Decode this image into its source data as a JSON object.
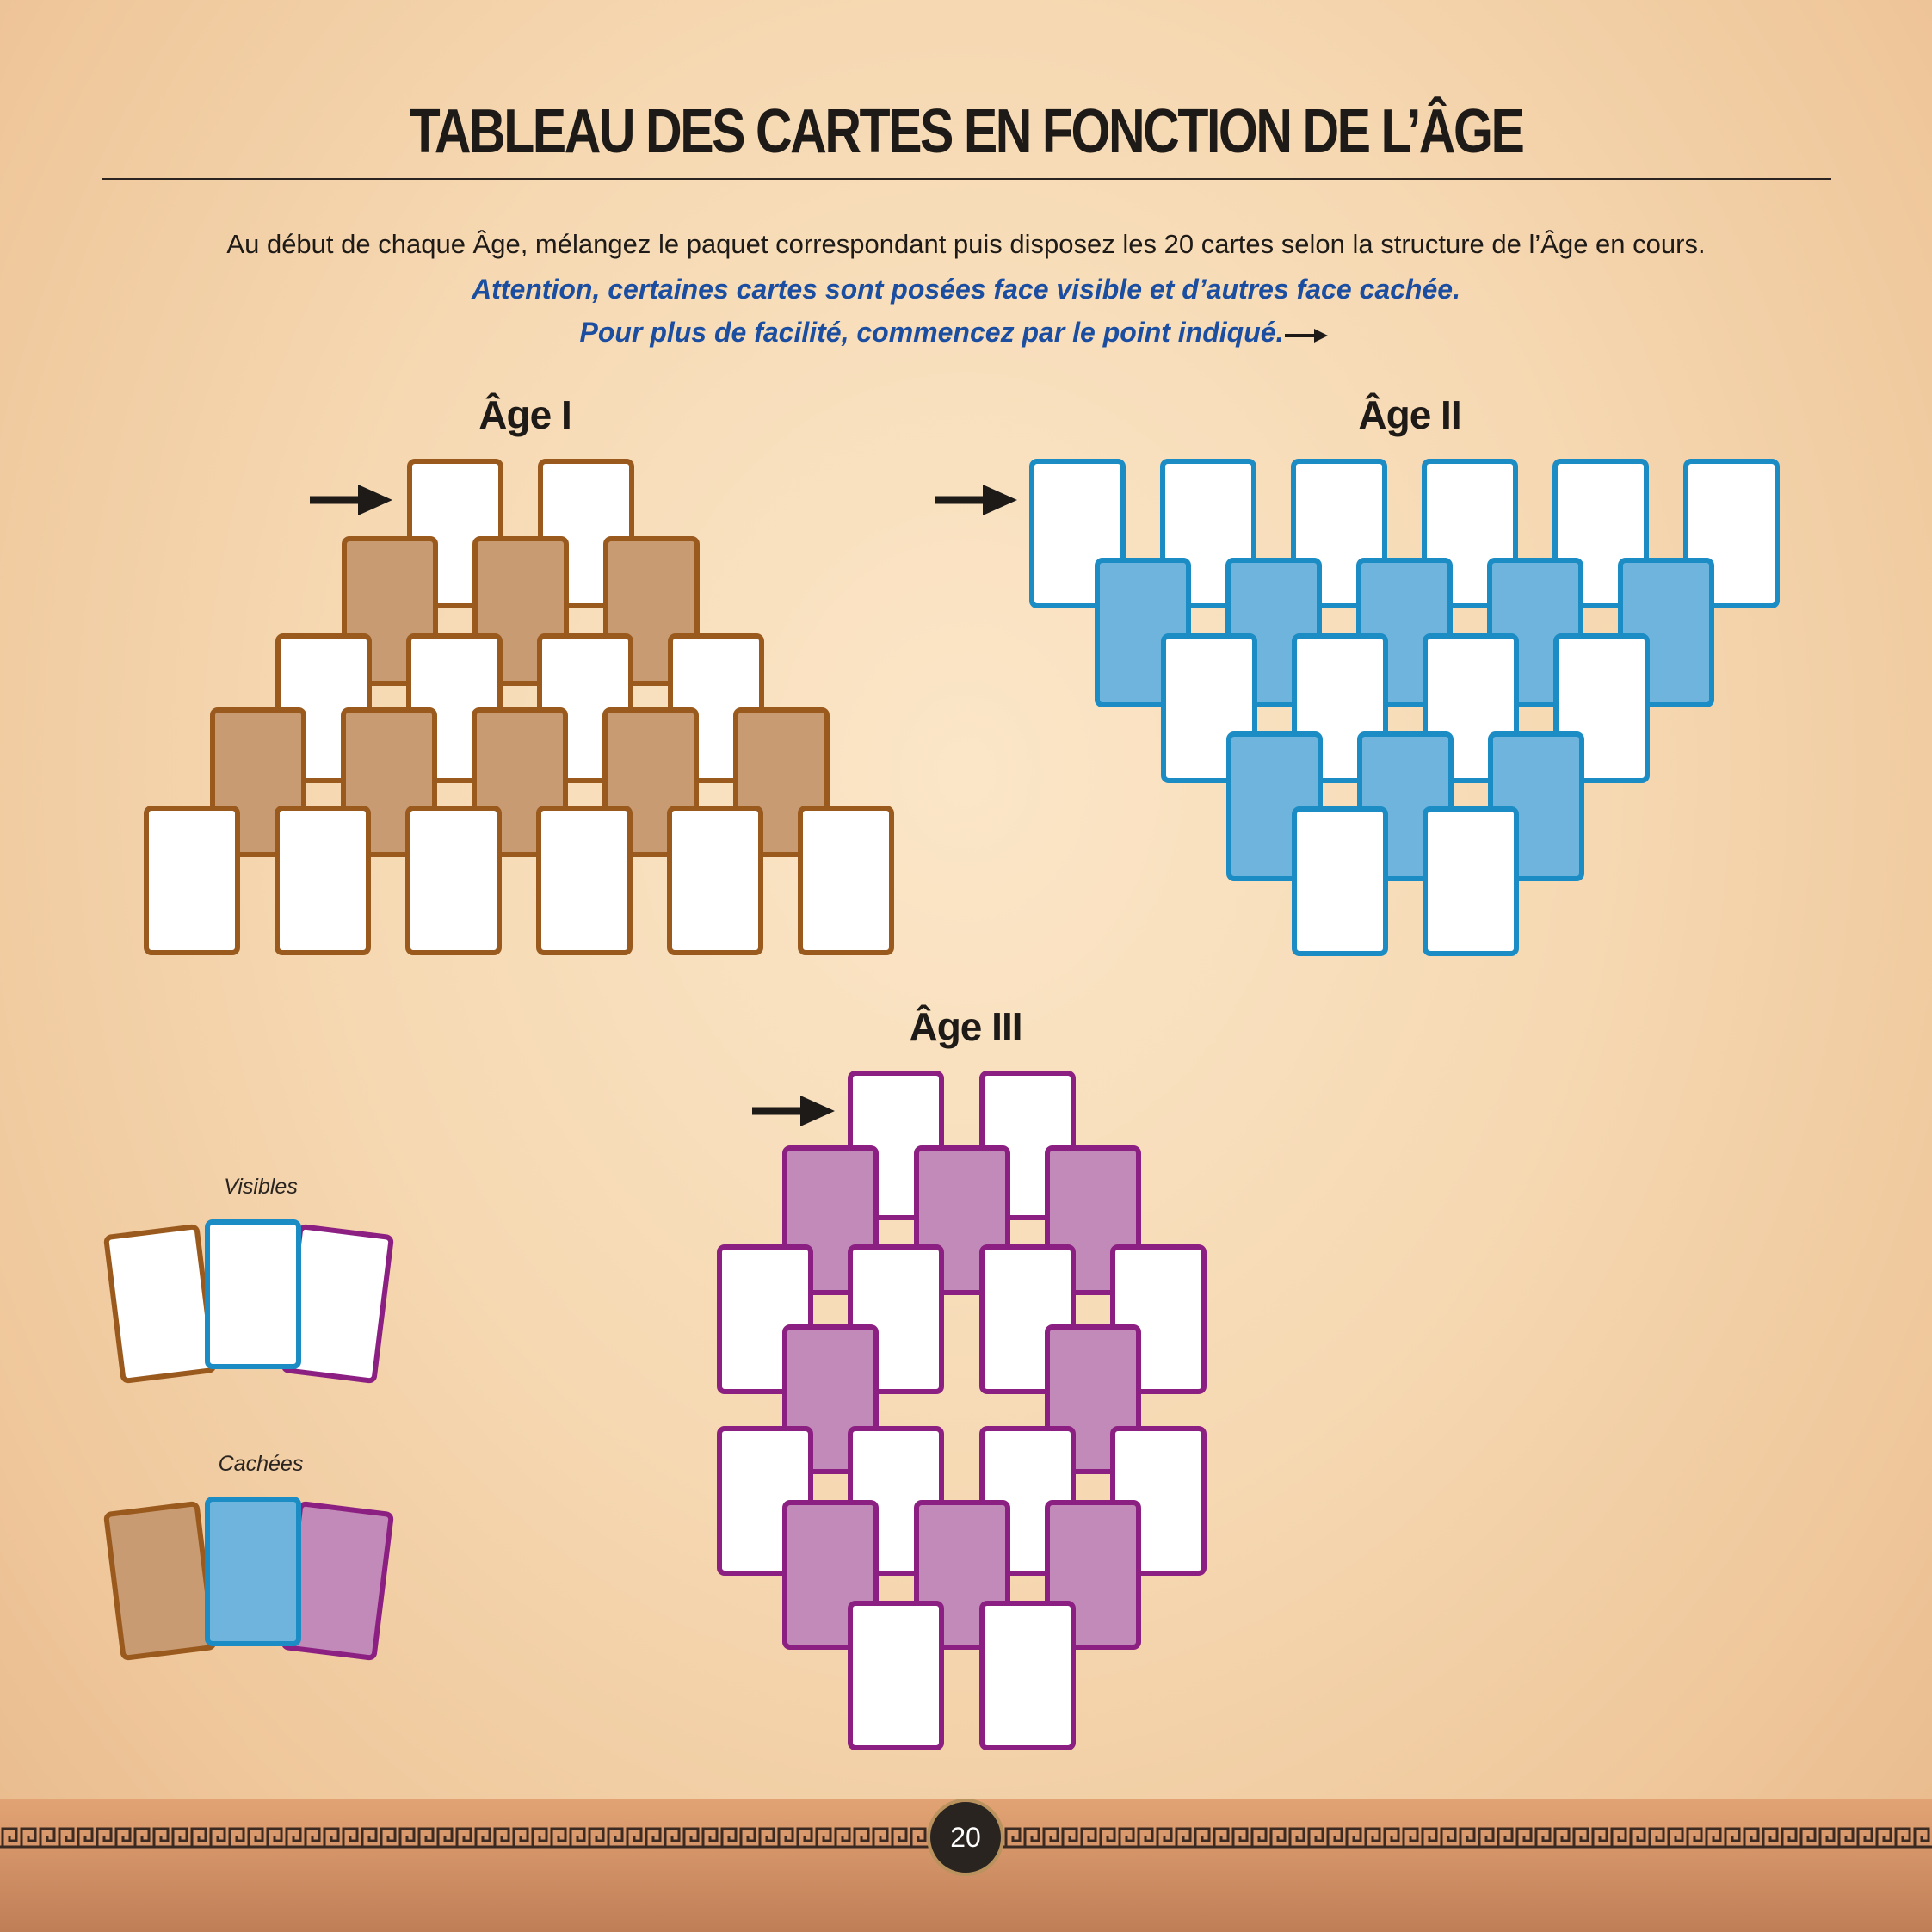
{
  "header": {
    "title": "TABLEAU DES CARTES EN FONCTION DE L’ÂGE",
    "intro": "Au début de chaque Âge, mélangez le paquet correspondant puis disposez les 20 cartes selon la structure de l’Âge en cours.",
    "note_line1": "Attention, certaines cartes sont posées face visible et d’autres face cachée.",
    "note_line2": "Pour plus de facilité, commencez par le point indiqué."
  },
  "colors": {
    "age1_border": "#9a5a1e",
    "age1_fill": "#c89b73",
    "age2_border": "#1b8cc4",
    "age2_fill": "#6fb4dd",
    "age3_border": "#8c1f82",
    "age3_fill": "#c28ab8",
    "visible_fill": "#ffffff",
    "note": "#1b4ea0"
  },
  "ages": [
    {
      "title": "Âge I"
    },
    {
      "title": "Âge II"
    },
    {
      "title": "Âge III"
    }
  ],
  "legend": {
    "visible_label": "Visibles",
    "hidden_label": "Cachées"
  },
  "footer": {
    "page_number": "20"
  },
  "icons": [
    "arrow-right-icon",
    "meander-border"
  ]
}
